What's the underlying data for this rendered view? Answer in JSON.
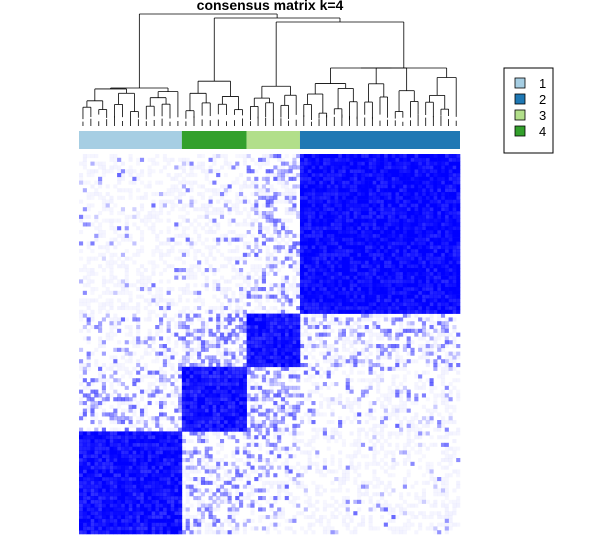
{
  "chart_data": {
    "type": "heatmap",
    "title": "consensus matrix k=4",
    "n_samples": 100,
    "value_range": [
      0,
      1
    ],
    "color_low": "#ffffff",
    "color_high": "#0000ff",
    "column_order_groups": [
      "1",
      "4",
      "3",
      "2"
    ],
    "row_order_top_to_bottom": [
      "2",
      "3",
      "4",
      "1"
    ],
    "groups": [
      {
        "label": "1",
        "color": "#a6cee3",
        "size": 27
      },
      {
        "label": "4",
        "color": "#33a02c",
        "size": 17
      },
      {
        "label": "3",
        "color": "#b2df8a",
        "size": 14
      },
      {
        "label": "2",
        "color": "#1f78b4",
        "size": 42
      }
    ],
    "within_group_consensus": {
      "1": 0.92,
      "2": 0.95,
      "3": 0.9,
      "4": 0.9
    },
    "between_group_consensus": {
      "1-4": 0.12,
      "1-3": 0.08,
      "1-2": 0.02,
      "4-3": 0.22,
      "4-2": 0.04,
      "3-2": 0.12
    },
    "legend": {
      "position": "right",
      "entries": [
        {
          "label": "1",
          "color": "#a6cee3"
        },
        {
          "label": "2",
          "color": "#1f78b4"
        },
        {
          "label": "3",
          "color": "#b2df8a"
        },
        {
          "label": "4",
          "color": "#33a02c"
        }
      ]
    }
  }
}
